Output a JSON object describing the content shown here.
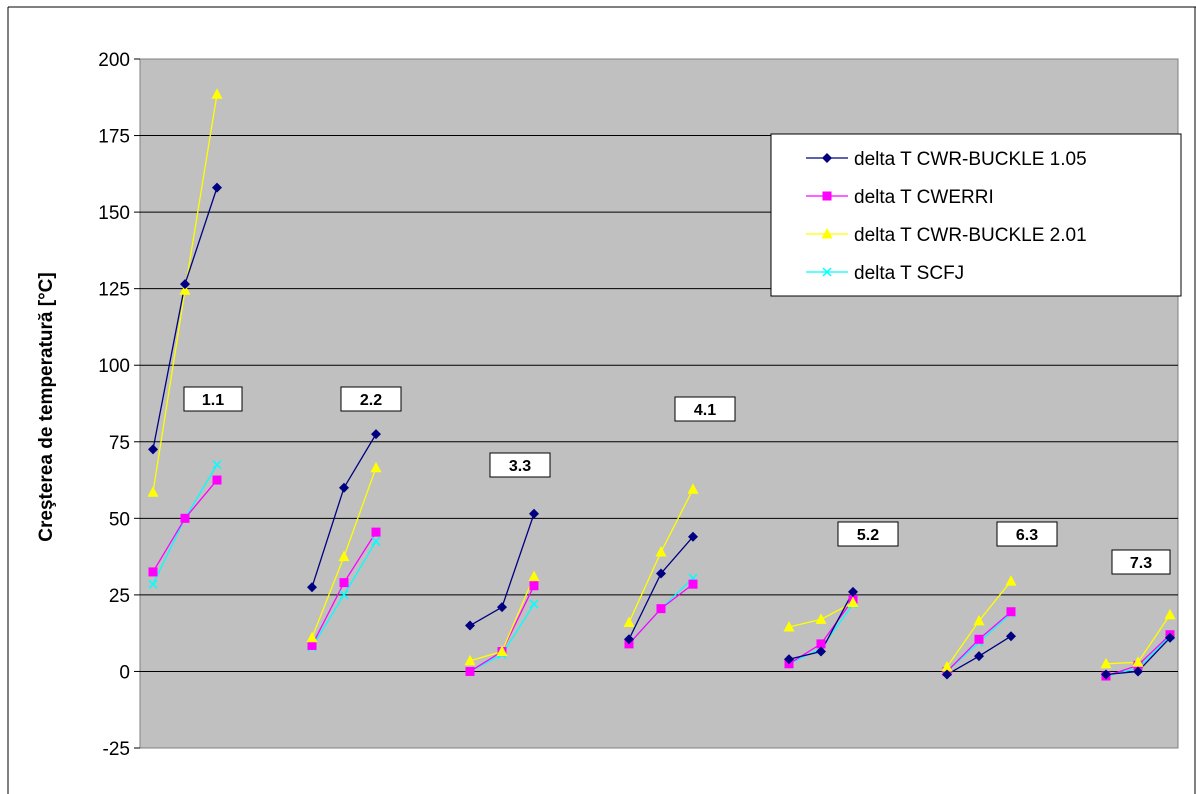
{
  "chart_data": {
    "type": "line",
    "title": "",
    "xlabel": "",
    "ylabel": "Creşterea de temperatură [°C]",
    "ylim": [
      -25,
      200
    ],
    "yticks": [
      -25,
      0,
      25,
      50,
      75,
      100,
      125,
      150,
      175,
      200
    ],
    "grid": true,
    "legend_position": "top-right",
    "plot_background": "#c0c0c0",
    "groups": [
      "1.1",
      "2.2",
      "3.3",
      "4.1",
      "5.2",
      "6.3",
      "7.3"
    ],
    "series": [
      {
        "name": "delta T CWR-BUCKLE 1.05",
        "color": "#000080",
        "marker": "diamond",
        "values": [
          [
            72.5,
            126.5,
            158
          ],
          [
            27.5,
            60,
            77.5
          ],
          [
            15,
            21,
            51.5
          ],
          [
            10.5,
            32,
            44
          ],
          [
            4,
            6.5,
            26
          ],
          [
            -1,
            5,
            11.5
          ],
          [
            -1,
            0,
            11
          ]
        ]
      },
      {
        "name": "delta T CWERRI",
        "color": "#ff00ff",
        "marker": "square",
        "values": [
          [
            32.5,
            50,
            62.5
          ],
          [
            8.5,
            29,
            45.5
          ],
          [
            0,
            6.5,
            28
          ],
          [
            9,
            20.5,
            28.5
          ],
          [
            2.5,
            9,
            23.5
          ],
          [
            0,
            10.5,
            19.5
          ],
          [
            -1.5,
            2,
            12
          ]
        ]
      },
      {
        "name": "delta T CWR-BUCKLE 2.01",
        "color": "#ffff00",
        "marker": "triangle",
        "values": [
          [
            58.5,
            124.5,
            188.5
          ],
          [
            11,
            37.5,
            66.5
          ],
          [
            3.5,
            6.5,
            31
          ],
          [
            16,
            39,
            59.5
          ],
          [
            14.5,
            17,
            22.5
          ],
          [
            1.5,
            16.5,
            29.5
          ],
          [
            2.5,
            3,
            18.5
          ]
        ]
      },
      {
        "name": "delta T SCFJ",
        "color": "#00ffff",
        "marker": "x",
        "values": [
          [
            28.5,
            50,
            67.5
          ],
          [
            8,
            25,
            42.5
          ],
          [
            0,
            5.5,
            22
          ],
          [
            9,
            20.5,
            30.5
          ],
          [
            2.5,
            7.5,
            22
          ],
          [
            0,
            9.5,
            19
          ],
          [
            -1.5,
            1,
            11.5
          ]
        ]
      }
    ]
  }
}
